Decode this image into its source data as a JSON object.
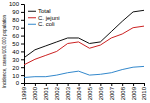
{
  "chart_data": {
    "type": "line",
    "ylabel": "Incidence, cases/100,000 population",
    "x": [
      1999,
      2000,
      2001,
      2002,
      2003,
      2004,
      2005,
      2006,
      2007,
      2008,
      2009,
      2010
    ],
    "series": [
      {
        "name": "Total",
        "color": "#111111",
        "values": [
          32,
          42,
          47,
          52,
          57,
          57,
          50,
          52,
          65,
          78,
          90,
          92
        ]
      },
      {
        "name": "C. jejuni",
        "color": "#cc2222",
        "values": [
          23,
          30,
          35,
          40,
          50,
          52,
          44,
          48,
          57,
          62,
          70,
          72
        ]
      },
      {
        "name": "C. coli",
        "color": "#3388cc",
        "values": [
          7,
          8,
          8,
          10,
          13,
          15,
          10,
          11,
          13,
          17,
          20,
          21
        ]
      }
    ],
    "xlim": [
      1999,
      2010
    ],
    "xticks": [
      1999,
      2000,
      2001,
      2002,
      2003,
      2004,
      2005,
      2006,
      2007,
      2008,
      2009,
      2010
    ],
    "ylim": [
      0,
      100
    ],
    "yticks": [
      0,
      10,
      20,
      30,
      40,
      50,
      60,
      70,
      80,
      90,
      100
    ],
    "grid": false,
    "legend": "upper left"
  }
}
